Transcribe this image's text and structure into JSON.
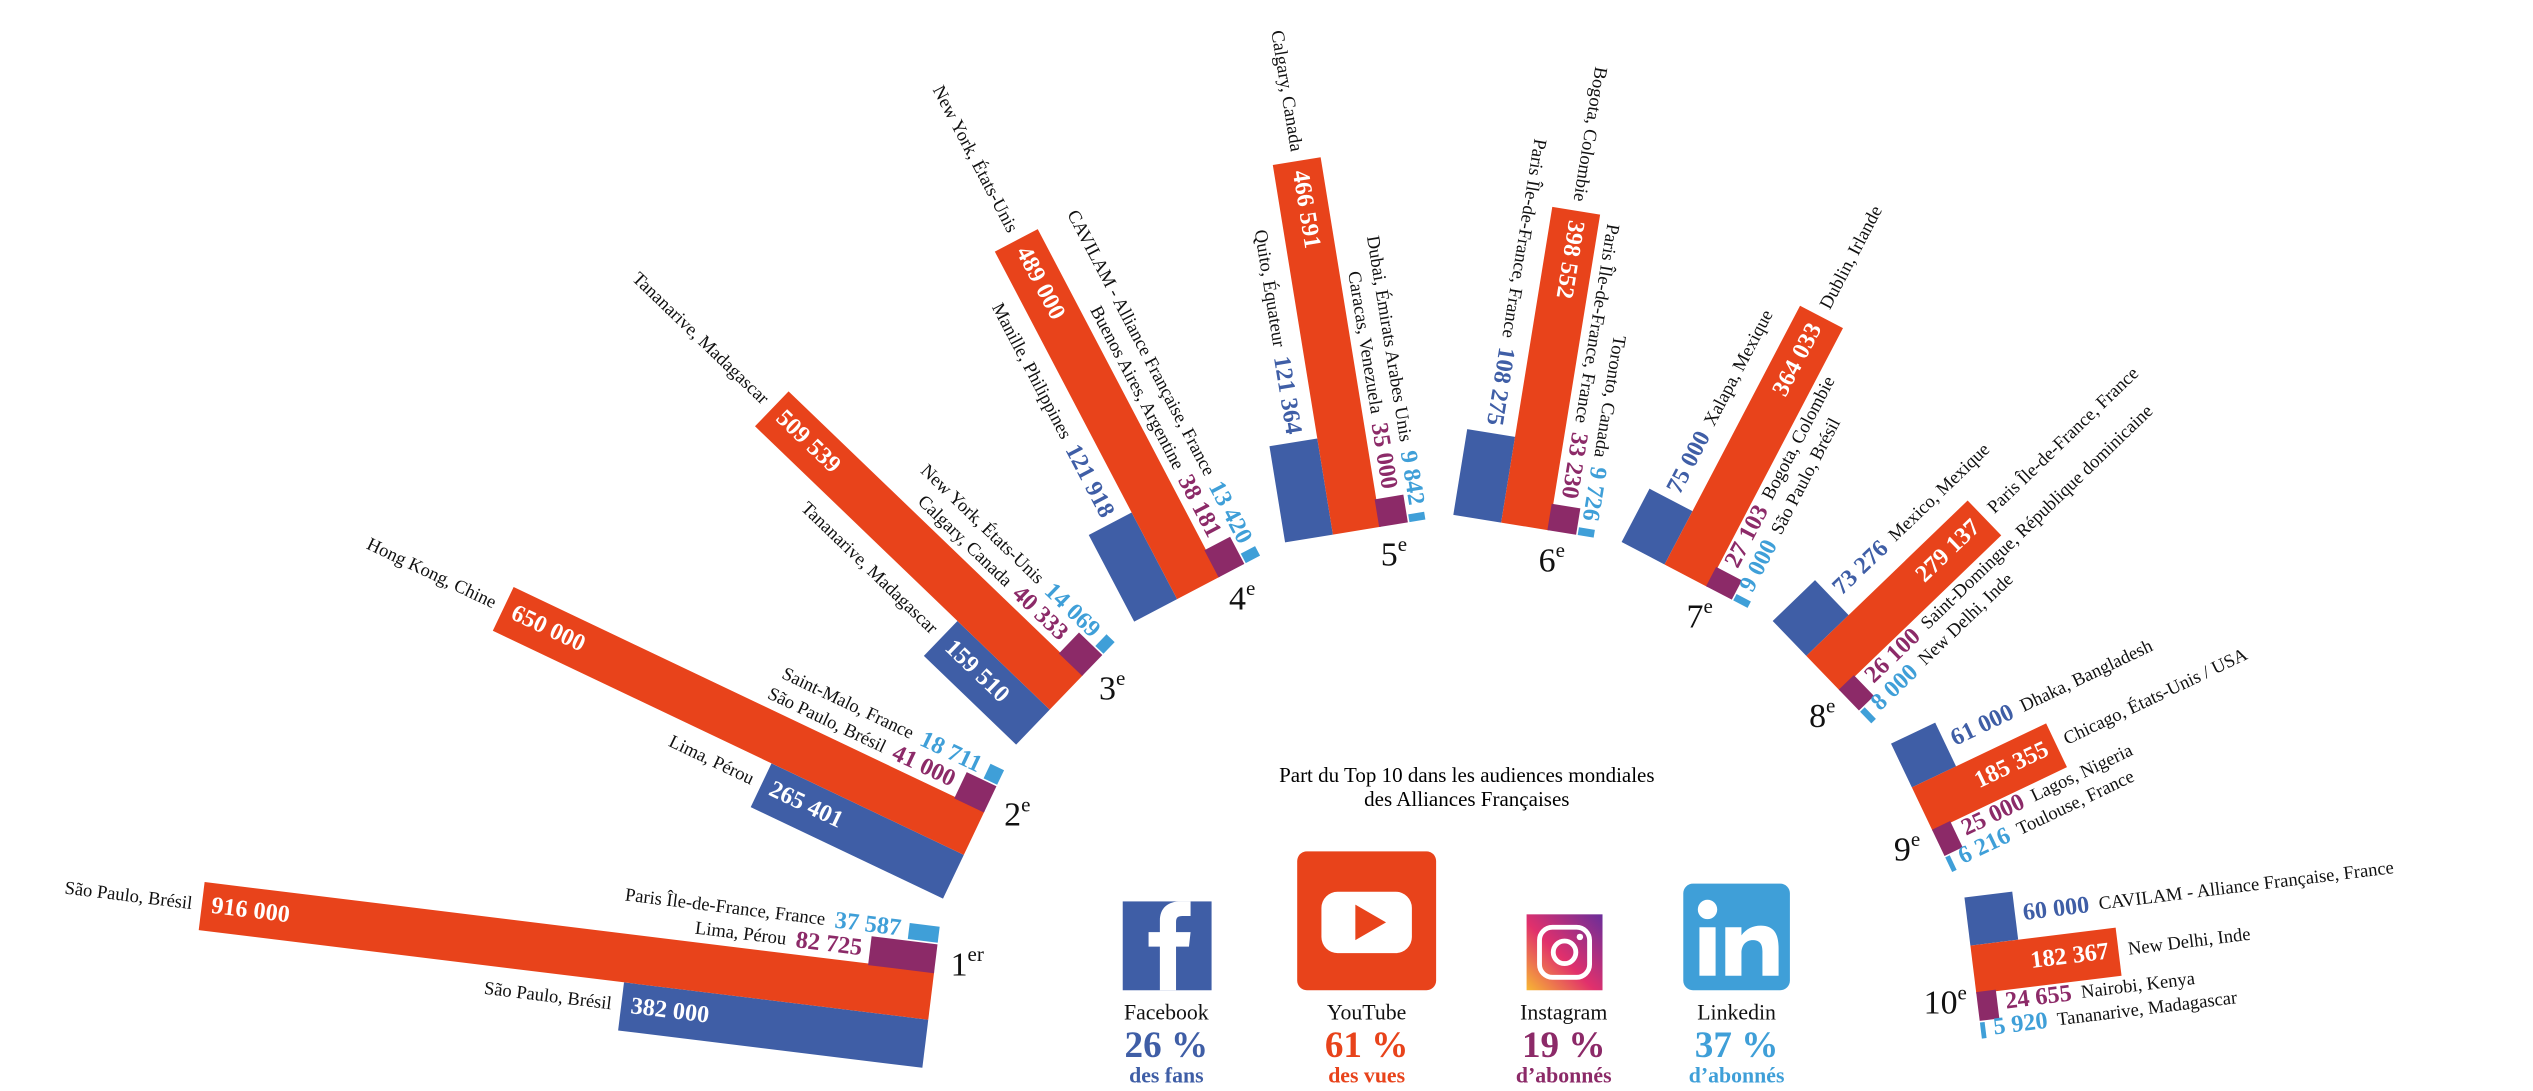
{
  "title": [
    "Part du Top 10 dans les audiences mondiales",
    "des Alliances Françaises"
  ],
  "networks": [
    {
      "name": "Facebook",
      "share": 26,
      "share_label": "26 %",
      "caption": "des fans",
      "color": "#3f5ea6"
    },
    {
      "name": "YouTube",
      "share": 61,
      "share_label": "61 %",
      "caption": "des vues",
      "color": "#e8431b"
    },
    {
      "name": "Instagram",
      "share": 19,
      "share_label": "19 %",
      "caption": "d’abonnés",
      "color": "#8c2a68"
    },
    {
      "name": "Linkedin",
      "share": 37,
      "share_label": "37 %",
      "caption": "d’abonnés",
      "color": "#3f9fd8"
    }
  ],
  "ranks": [
    {
      "rank": "1",
      "suffix": "er",
      "entries": [
        {
          "place": "São Paulo, Brésil",
          "value": 382000,
          "value_label": "382 000"
        },
        {
          "place": "São Paulo, Brésil",
          "value": 916000,
          "value_label": "916 000"
        },
        {
          "place": "Lima, Pérou",
          "value": 82725,
          "value_label": "82 725"
        },
        {
          "place": "Paris Île-de-France, France",
          "value": 37587,
          "value_label": "37 587"
        }
      ]
    },
    {
      "rank": "2",
      "suffix": "e",
      "entries": [
        {
          "place": "Lima, Pérou",
          "value": 265401,
          "value_label": "265 401"
        },
        {
          "place": "Hong Kong, Chine",
          "value": 650000,
          "value_label": "650 000"
        },
        {
          "place": "São Paulo, Brésil",
          "value": 41000,
          "value_label": "41 000"
        },
        {
          "place": "Saint-Malo, France",
          "value": 18711,
          "value_label": "18 711"
        }
      ]
    },
    {
      "rank": "3",
      "suffix": "e",
      "entries": [
        {
          "place": "Tananarive, Madagascar",
          "value": 159510,
          "value_label": "159 510"
        },
        {
          "place": "Tananarive, Madagascar",
          "value": 509539,
          "value_label": "509 539"
        },
        {
          "place": "Calgary, Canada",
          "value": 40333,
          "value_label": "40 333"
        },
        {
          "place": "New York, États-Unis",
          "value": 14069,
          "value_label": "14 069"
        }
      ]
    },
    {
      "rank": "4",
      "suffix": "e",
      "entries": [
        {
          "place": "Manille, Philippines",
          "value": 121918,
          "value_label": "121 918"
        },
        {
          "place": "New York, États-Unis",
          "value": 489000,
          "value_label": "489 000"
        },
        {
          "place": "Buenos Aires, Argentine",
          "value": 38181,
          "value_label": "38 181"
        },
        {
          "place": "CAVILAM - Alliance Française, France",
          "value": 13420,
          "value_label": "13 420"
        }
      ]
    },
    {
      "rank": "5",
      "suffix": "e",
      "entries": [
        {
          "place": "Quito, Équateur",
          "value": 121364,
          "value_label": "121 364"
        },
        {
          "place": "Calgary, Canada",
          "value": 466591,
          "value_label": "466 591"
        },
        {
          "place": "Caracas, Venezuela",
          "value": 35000,
          "value_label": "35 000"
        },
        {
          "place": "Dubai, Émirats Arabes Unis",
          "value": 9842,
          "value_label": "9 842"
        }
      ]
    },
    {
      "rank": "6",
      "suffix": "e",
      "entries": [
        {
          "place": "Paris Île-de-France, France",
          "value": 108275,
          "value_label": "108 275"
        },
        {
          "place": "Bogota, Colombie",
          "value": 398552,
          "value_label": "398 552"
        },
        {
          "place": "Paris Île-de-France, France",
          "value": 33230,
          "value_label": "33 230"
        },
        {
          "place": "Toronto, Canada",
          "value": 9726,
          "value_label": "9 726"
        }
      ]
    },
    {
      "rank": "7",
      "suffix": "e",
      "entries": [
        {
          "place": "Xalapa, Mexique",
          "value": 75000,
          "value_label": "75 000"
        },
        {
          "place": "Dublin, Irlande",
          "value": 364033,
          "value_label": "364 033"
        },
        {
          "place": "Bogota, Colombie",
          "value": 27103,
          "value_label": "27 103"
        },
        {
          "place": "São Paulo, Brésil",
          "value": 9000,
          "value_label": "9 000"
        }
      ]
    },
    {
      "rank": "8",
      "suffix": "e",
      "entries": [
        {
          "place": "Mexico, Mexique",
          "value": 73276,
          "value_label": "73 276"
        },
        {
          "place": "Paris Île-de-France, France",
          "value": 279137,
          "value_label": "279 137"
        },
        {
          "place": "Saint-Domingue, République dominicaine",
          "value": 26100,
          "value_label": "26 100"
        },
        {
          "place": "New Delhi, Inde",
          "value": 8000,
          "value_label": "8 000"
        }
      ]
    },
    {
      "rank": "9",
      "suffix": "e",
      "entries": [
        {
          "place": "Dhaka, Bangladesh",
          "value": 61000,
          "value_label": "61 000"
        },
        {
          "place": "Chicago, États-Unis / USA",
          "value": 185355,
          "value_label": "185 355"
        },
        {
          "place": "Lagos, Nigeria",
          "value": 25000,
          "value_label": "25 000"
        },
        {
          "place": "Toulouse, France",
          "value": 6216,
          "value_label": "6 216"
        }
      ]
    },
    {
      "rank": "10",
      "suffix": "e",
      "entries": [
        {
          "place": "CAVILAM - Alliance Française, France",
          "value": 60000,
          "value_label": "60 000"
        },
        {
          "place": "New Delhi, Inde",
          "value": 182367,
          "value_label": "182 367"
        },
        {
          "place": "Nairobi, Kenya",
          "value": 24655,
          "value_label": "24 655"
        },
        {
          "place": "Tananarive, Madagascar",
          "value": 5920,
          "value_label": "5 920"
        }
      ]
    }
  ]
}
